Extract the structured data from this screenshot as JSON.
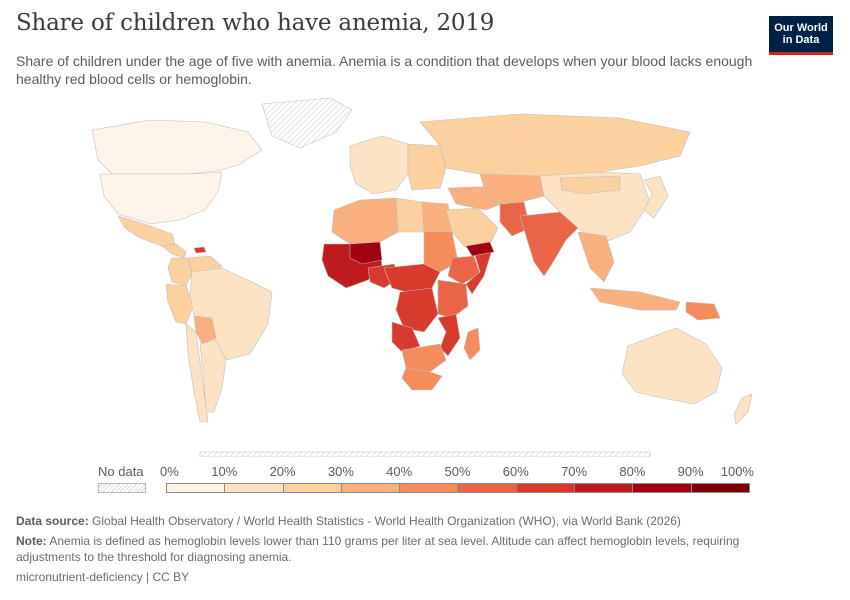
{
  "title": "Share of children who have anemia, 2019",
  "subtitle": "Share of children under the age of five with anemia. Anemia is a condition that develops when your blood lacks enough healthy red blood cells or hemoglobin.",
  "logo": "Our World in Data",
  "legend": {
    "no_data_label": "No data",
    "ticks": [
      "0%",
      "10%",
      "20%",
      "30%",
      "40%",
      "50%",
      "60%",
      "70%",
      "80%",
      "90%",
      "100%"
    ],
    "colors": [
      "#fef4e9",
      "#fde3c4",
      "#fcd19f",
      "#f9b07e",
      "#f58c5c",
      "#ea6446",
      "#d83a2d",
      "#bf1a1e",
      "#a20010",
      "#7a0008"
    ],
    "no_data_color": "#e6e6e6"
  },
  "regions": [
    {
      "name": "Canada",
      "value": 8
    },
    {
      "name": "United States",
      "value": 6
    },
    {
      "name": "Mexico",
      "value": 20
    },
    {
      "name": "Central America",
      "value": 24
    },
    {
      "name": "Haiti",
      "value": 63
    },
    {
      "name": "Venezuela",
      "value": 26
    },
    {
      "name": "Colombia",
      "value": 24
    },
    {
      "name": "Peru",
      "value": 28
    },
    {
      "name": "Brazil",
      "value": 12
    },
    {
      "name": "Bolivia",
      "value": 38
    },
    {
      "name": "Argentina",
      "value": 17
    },
    {
      "name": "Chile",
      "value": 14
    },
    {
      "name": "Greenland",
      "value": null
    },
    {
      "name": "Western Europe",
      "value": 12
    },
    {
      "name": "Eastern Europe",
      "value": 20
    },
    {
      "name": "Russia",
      "value": 23
    },
    {
      "name": "North Africa",
      "value": 34
    },
    {
      "name": "Libya",
      "value": 28
    },
    {
      "name": "Egypt",
      "value": 30
    },
    {
      "name": "West Africa (Sahel)",
      "value": 75
    },
    {
      "name": "Mali",
      "value": 82
    },
    {
      "name": "Nigeria",
      "value": 68
    },
    {
      "name": "Sudan",
      "value": 46
    },
    {
      "name": "Ethiopia",
      "value": 56
    },
    {
      "name": "Somalia",
      "value": 63
    },
    {
      "name": "Central Africa",
      "value": 66
    },
    {
      "name": "DR Congo",
      "value": 64
    },
    {
      "name": "East Africa",
      "value": 55
    },
    {
      "name": "Angola",
      "value": 62
    },
    {
      "name": "Mozambique",
      "value": 66
    },
    {
      "name": "Southern Africa",
      "value": 44
    },
    {
      "name": "South Africa",
      "value": 48
    },
    {
      "name": "Madagascar",
      "value": 48
    },
    {
      "name": "Middle East",
      "value": 32
    },
    {
      "name": "Saudi Arabia",
      "value": 22
    },
    {
      "name": "Yemen",
      "value": 86
    },
    {
      "name": "Central Asia",
      "value": 30
    },
    {
      "name": "Pakistan",
      "value": 55
    },
    {
      "name": "India",
      "value": 54
    },
    {
      "name": "China",
      "value": 17
    },
    {
      "name": "Mongolia",
      "value": 27
    },
    {
      "name": "Southeast Asia",
      "value": 35
    },
    {
      "name": "Indonesia",
      "value": 38
    },
    {
      "name": "Papua New Guinea",
      "value": 40
    },
    {
      "name": "Japan",
      "value": 13
    },
    {
      "name": "Australia",
      "value": 15
    },
    {
      "name": "New Zealand",
      "value": 13
    },
    {
      "name": "Antarctica",
      "value": null
    }
  ],
  "footer": {
    "source_label": "Data source:",
    "source_text": "Global Health Observatory / World Health Statistics - World Health Organization (WHO), via World Bank (2026)",
    "note_label": "Note:",
    "note_text": "Anemia is defined as hemoglobin levels lower than 110 grams per liter at sea level. Altitude can affect hemoglobin levels, requiring adjustments to the threshold for diagnosing anemia.",
    "license": "micronutrient-deficiency | CC BY"
  }
}
